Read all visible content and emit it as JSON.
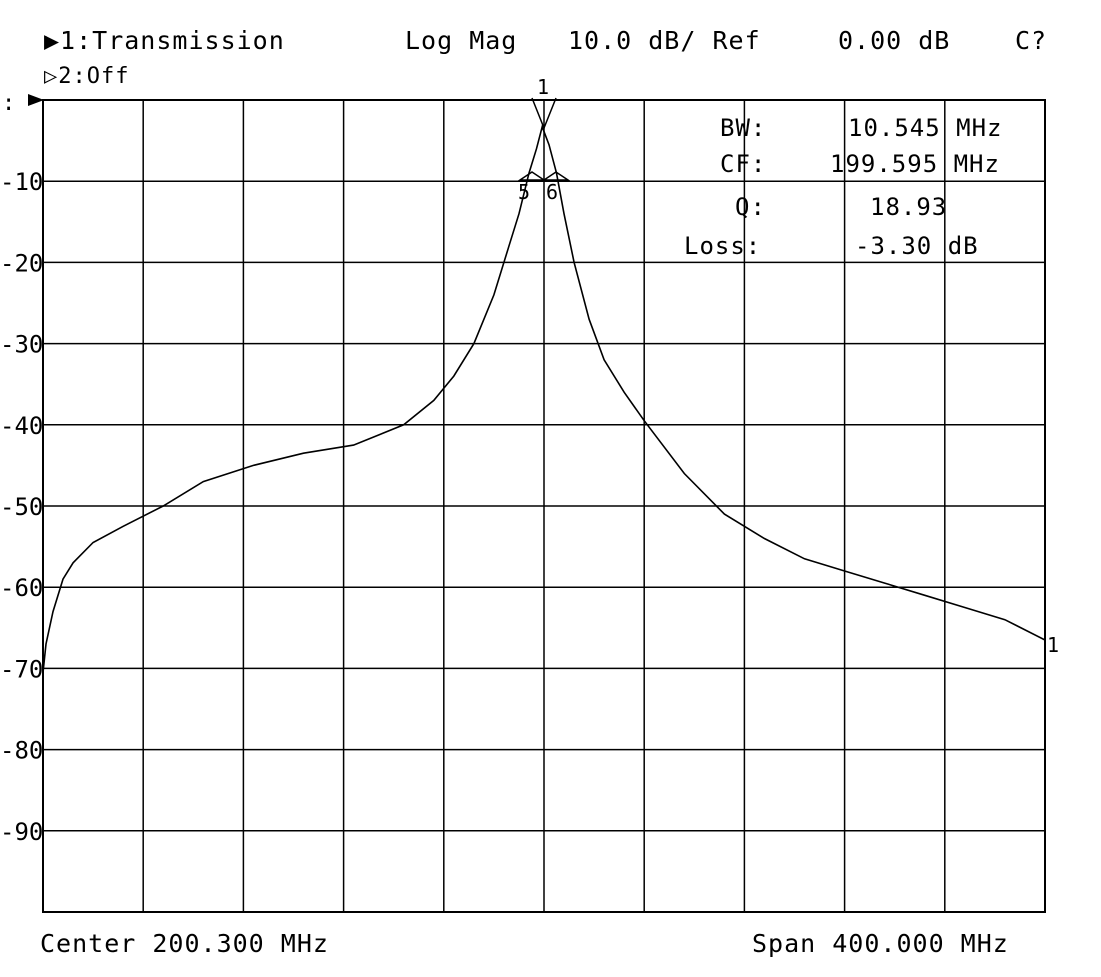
{
  "header": {
    "trace1": "▶1:Transmission",
    "format": "Log Mag",
    "scale": "10.0 dB/ Ref",
    "ref": "0.00 dB",
    "flag": "C?",
    "trace2": "▷2:Off"
  },
  "readout": {
    "bw_label": "BW:",
    "bw_value": "10.545 MHz",
    "cf_label": "CF:",
    "cf_value": "199.595 MHz",
    "q_label": "Q:",
    "q_value": "18.93",
    "loss_label": "Loss:",
    "loss_value": "-3.30 dB"
  },
  "footer": {
    "center": "Center 200.300 MHz",
    "span": "Span 400.000 MHz"
  },
  "markers": {
    "m1": "1",
    "m5": "5",
    "m6": "6",
    "m1_end": "1"
  },
  "chart_data": {
    "type": "line",
    "title": "",
    "xlabel": "",
    "ylabel": "",
    "x_unit": "MHz",
    "xlim": [
      0.3,
      400.3
    ],
    "ylim": [
      -100,
      0
    ],
    "grid": true,
    "ytick_labels": [
      "-10",
      "-20",
      "-30",
      "-40",
      "-50",
      "-60",
      "-70",
      "-80",
      "-90"
    ],
    "ytick_values": [
      -10,
      -20,
      -30,
      -40,
      -50,
      -60,
      -70,
      -80,
      -90
    ],
    "series": [
      {
        "name": "",
        "color": "#000000",
        "x": [
          0.3,
          1.5,
          4.3,
          8.3,
          12.3,
          20.3,
          32.3,
          48.3,
          64.3,
          84.3,
          104.3,
          124.3,
          144.3,
          156.3,
          164.3,
          172.3,
          180.3,
          186.3,
          190.3,
          194.3,
          197.3,
          199.6,
          202.3,
          205.3,
          208.3,
          212.3,
          218.3,
          224.3,
          232.3,
          240.3,
          256.3,
          272.3,
          288.3,
          304.3,
          320.3,
          336.3,
          352.3,
          368.3,
          384.3,
          400.3
        ],
        "y": [
          -70.5,
          -67,
          -63,
          -59,
          -57,
          -54.5,
          -52.5,
          -50,
          -47,
          -45,
          -43.5,
          -42.5,
          -40,
          -37,
          -34,
          -30,
          -24,
          -18,
          -14,
          -9,
          -6,
          -3.3,
          -5.5,
          -9,
          -14,
          -20,
          -27,
          -32,
          -36,
          -39.5,
          -46,
          -51,
          -54,
          -56.5,
          -58,
          -59.5,
          -61,
          -62.5,
          -64,
          -66.5
        ]
      }
    ]
  }
}
